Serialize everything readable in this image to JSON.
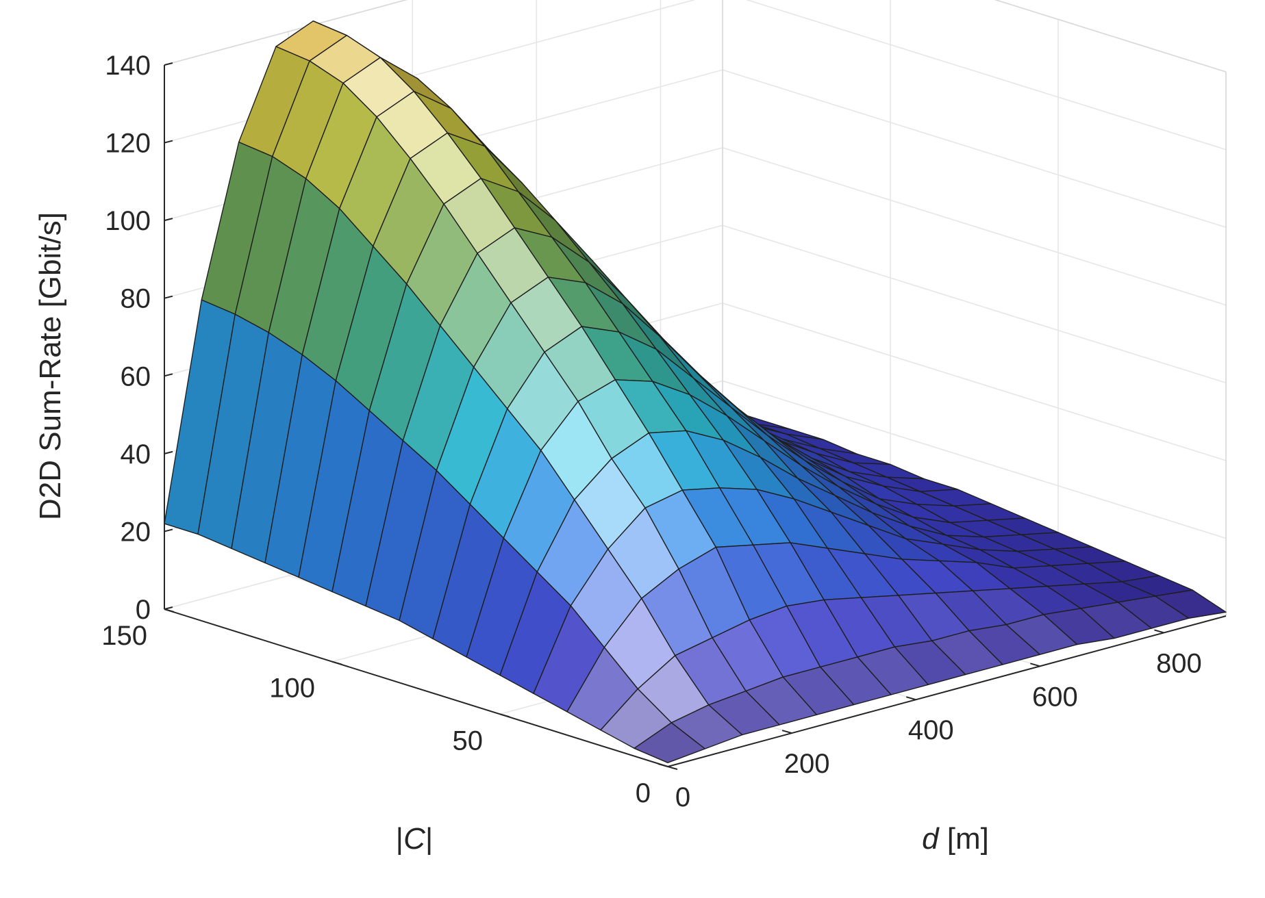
{
  "chart_data": {
    "type": "surface3d",
    "title": "",
    "zlabel": "D2D Sum-Rate [Gbit/s]",
    "ylabel_italic": "C",
    "ylabel_bars": "|",
    "xlabel_italic": "d",
    "xlabel_unit": " [m]",
    "xlim": [
      0,
      900
    ],
    "ylim": [
      0,
      150
    ],
    "zlim": [
      0,
      140
    ],
    "xticks": [
      0,
      200,
      400,
      600,
      800
    ],
    "xtick_labels": [
      "0",
      "200",
      "400",
      "600",
      "800"
    ],
    "yticks": [
      0,
      50,
      100,
      150
    ],
    "ytick_labels": [
      "0",
      "50",
      "100",
      "150"
    ],
    "zticks": [
      0,
      20,
      40,
      60,
      80,
      100,
      120,
      140
    ],
    "ztick_labels": [
      "0",
      "20",
      "40",
      "60",
      "80",
      "100",
      "120",
      "140"
    ],
    "grid": true,
    "colormap": "parula-like",
    "colors": [
      "#2a1a7a",
      "#3b3ec8",
      "#2f7ae0",
      "#28b8d8",
      "#bff8ff",
      "#3aa48a",
      "#b5b83a",
      "#d9b24a"
    ],
    "x": [
      0,
      60,
      120,
      180,
      240,
      300,
      360,
      420,
      480,
      540,
      600,
      660,
      720,
      780,
      840,
      900
    ],
    "y": [
      0,
      10,
      20,
      30,
      40,
      50,
      60,
      70,
      80,
      90,
      100,
      110,
      120,
      130,
      140,
      150
    ],
    "z": [
      [
        1,
        2,
        3,
        3,
        3,
        3,
        3,
        3,
        3,
        3,
        3,
        3,
        2,
        2,
        2,
        1
      ],
      [
        2,
        6,
        8,
        9,
        10,
        10,
        10,
        10,
        9,
        9,
        8,
        8,
        7,
        6,
        5,
        4
      ],
      [
        4,
        12,
        18,
        20,
        22,
        23,
        22,
        20,
        18,
        16,
        14,
        12,
        10,
        8,
        6,
        5
      ],
      [
        6,
        20,
        30,
        35,
        38,
        36,
        34,
        30,
        26,
        22,
        19,
        16,
        12,
        10,
        8,
        6
      ],
      [
        8,
        28,
        40,
        48,
        50,
        48,
        45,
        40,
        34,
        28,
        22,
        18,
        14,
        11,
        9,
        7
      ],
      [
        10,
        34,
        50,
        58,
        62,
        60,
        55,
        48,
        40,
        33,
        26,
        20,
        15,
        12,
        10,
        8
      ],
      [
        12,
        40,
        60,
        70,
        73,
        70,
        64,
        56,
        47,
        38,
        30,
        23,
        17,
        13,
        11,
        9
      ],
      [
        14,
        46,
        68,
        80,
        84,
        80,
        73,
        63,
        53,
        43,
        34,
        26,
        19,
        15,
        12,
        10
      ],
      [
        16,
        52,
        76,
        90,
        94,
        90,
        82,
        71,
        59,
        48,
        38,
        29,
        22,
        17,
        13,
        11
      ],
      [
        17,
        57,
        84,
        100,
        104,
        99,
        90,
        78,
        65,
        53,
        42,
        32,
        24,
        18,
        14,
        11
      ],
      [
        18,
        62,
        92,
        110,
        114,
        108,
        98,
        85,
        71,
        58,
        46,
        35,
        26,
        20,
        15,
        12
      ],
      [
        19,
        67,
        99,
        119,
        123,
        117,
        105,
        91,
        76,
        62,
        49,
        38,
        28,
        21,
        16,
        12
      ],
      [
        20,
        71,
        106,
        127,
        131,
        124,
        111,
        96,
        80,
        65,
        52,
        40,
        30,
        22,
        17,
        13
      ],
      [
        21,
        74,
        111,
        133,
        137,
        129,
        115,
        99,
        83,
        67,
        54,
        42,
        31,
        23,
        17,
        13
      ],
      [
        22,
        76,
        114,
        136,
        140,
        131,
        117,
        101,
        84,
        68,
        55,
        43,
        32,
        24,
        18,
        13
      ],
      [
        22,
        77,
        115,
        137,
        141,
        132,
        118,
        102,
        85,
        69,
        56,
        44,
        33,
        24,
        18,
        13
      ]
    ]
  }
}
